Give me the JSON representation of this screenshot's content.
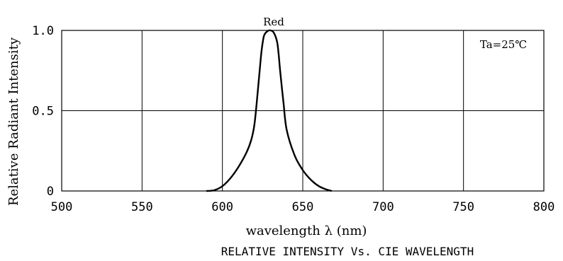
{
  "chart_data": {
    "type": "line",
    "title": "RELATIVE INTENSITY Vs. CIE WAVELENGTH",
    "xlabel": "wavelength λ (nm)",
    "ylabel": "Relative Radiant Intensity",
    "xlim": [
      500,
      800
    ],
    "ylim": [
      0,
      1.0
    ],
    "x_ticks": [
      "500",
      "550",
      "600",
      "650",
      "700",
      "750",
      "800"
    ],
    "x_tick_values": [
      500,
      550,
      600,
      650,
      700,
      750,
      800
    ],
    "y_ticks": [
      "0",
      "0.5",
      "1.0"
    ],
    "y_tick_values": [
      0,
      0.5,
      1.0
    ],
    "grid": true,
    "annotations": {
      "condition": "Ta=25℃",
      "series_label": "Red"
    },
    "series": [
      {
        "name": "Red",
        "x": [
          590,
          595,
          600,
          605,
          610,
          615,
          618,
          620,
          622,
          624,
          625,
          626,
          628,
          630,
          632,
          634,
          635,
          636,
          638,
          640,
          645,
          650,
          655,
          660,
          665,
          668
        ],
        "y": [
          0.0,
          0.005,
          0.03,
          0.08,
          0.15,
          0.24,
          0.32,
          0.42,
          0.62,
          0.84,
          0.92,
          0.97,
          0.995,
          1.0,
          0.985,
          0.93,
          0.85,
          0.74,
          0.55,
          0.38,
          0.22,
          0.13,
          0.07,
          0.03,
          0.008,
          0.0
        ]
      }
    ]
  }
}
